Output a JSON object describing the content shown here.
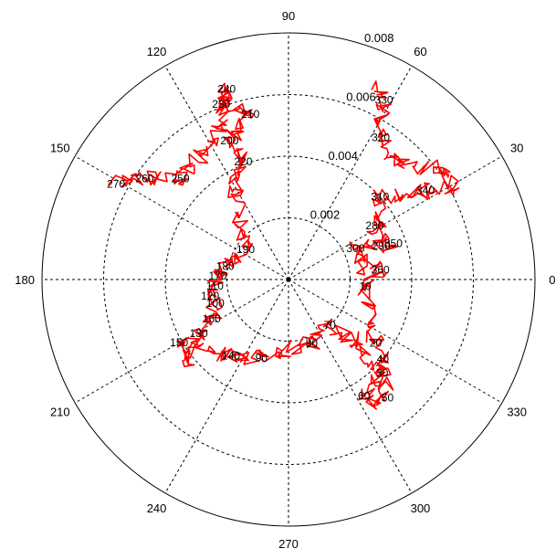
{
  "chart_data": {
    "type": "polar-line",
    "title": "",
    "angular_unit": "degrees",
    "angle_ticks": [
      "0",
      "30",
      "60",
      "90",
      "120",
      "150",
      "180",
      "210",
      "240",
      "270",
      "300",
      "330"
    ],
    "radial_ticks": [
      "0.002",
      "0.004",
      "0.006",
      "0.008"
    ],
    "rlim": [
      0,
      0.008
    ],
    "grid": true,
    "series_color": "#ff0000",
    "series": [
      {
        "name": "",
        "points": [
          {
            "theta": 65,
            "r": 0.007,
            "label": ""
          },
          {
            "theta": 62,
            "r": 0.0066,
            "label": "330"
          },
          {
            "theta": 57,
            "r": 0.0055,
            "label": "320"
          },
          {
            "theta": 45,
            "r": 0.0052,
            "label": ""
          },
          {
            "theta": 37,
            "r": 0.006,
            "label": ""
          },
          {
            "theta": 29,
            "r": 0.0062,
            "label": ""
          },
          {
            "theta": 33,
            "r": 0.0053,
            "label": "340"
          },
          {
            "theta": 42,
            "r": 0.004,
            "label": "310"
          },
          {
            "theta": 32,
            "r": 0.0033,
            "label": "280"
          },
          {
            "theta": 19,
            "r": 0.0036,
            "label": "350"
          },
          {
            "theta": 20,
            "r": 0.0032,
            "label": "290"
          },
          {
            "theta": 25,
            "r": 0.0024,
            "label": "300"
          },
          {
            "theta": 10,
            "r": 0.0024,
            "label": ""
          },
          {
            "theta": 6,
            "r": 0.003,
            "label": "360"
          },
          {
            "theta": 0,
            "r": 0.0027,
            "label": ""
          },
          {
            "theta": -5,
            "r": 0.0025,
            "label": "10"
          },
          {
            "theta": -25,
            "r": 0.003,
            "label": ""
          },
          {
            "theta": -36,
            "r": 0.0035,
            "label": "20"
          },
          {
            "theta": -40,
            "r": 0.004,
            "label": "40"
          },
          {
            "theta": -50,
            "r": 0.005,
            "label": "50"
          },
          {
            "theta": -56,
            "r": 0.0049,
            "label": ""
          },
          {
            "theta": -57,
            "r": 0.0045,
            "label": "60"
          },
          {
            "theta": -45,
            "r": 0.0043,
            "label": "30"
          },
          {
            "theta": -42,
            "r": 0.003,
            "label": ""
          },
          {
            "theta": -48,
            "r": 0.002,
            "label": "70"
          },
          {
            "theta": -70,
            "r": 0.0022,
            "label": "80"
          },
          {
            "theta": -95,
            "r": 0.0023,
            "label": ""
          },
          {
            "theta": -109,
            "r": 0.0027,
            "label": "90"
          },
          {
            "theta": -127,
            "r": 0.0031,
            "label": "140"
          },
          {
            "theta": -150,
            "r": 0.0041,
            "label": "150"
          },
          {
            "theta": -140,
            "r": 0.0042,
            "label": ""
          },
          {
            "theta": -149,
            "r": 0.0034,
            "label": "130"
          },
          {
            "theta": -153,
            "r": 0.0028,
            "label": "160"
          },
          {
            "theta": -162,
            "r": 0.0025,
            "label": "100"
          },
          {
            "theta": -168,
            "r": 0.0026,
            "label": "120"
          },
          {
            "theta": -175,
            "r": 0.0024,
            "label": "110"
          },
          {
            "theta": 177,
            "r": 0.0023,
            "label": "170"
          },
          {
            "theta": 168,
            "r": 0.0021,
            "label": "180"
          },
          {
            "theta": 145,
            "r": 0.0017,
            "label": "190"
          },
          {
            "theta": 120,
            "r": 0.0035,
            "label": ""
          },
          {
            "theta": 111,
            "r": 0.0041,
            "label": "220"
          },
          {
            "theta": 113,
            "r": 0.0049,
            "label": "200"
          },
          {
            "theta": 103,
            "r": 0.0055,
            "label": "210"
          },
          {
            "theta": 111,
            "r": 0.0061,
            "label": "230"
          },
          {
            "theta": 108,
            "r": 0.0065,
            "label": "240"
          },
          {
            "theta": 117,
            "r": 0.0051,
            "label": ""
          },
          {
            "theta": 137,
            "r": 0.0048,
            "label": "250"
          },
          {
            "theta": 145,
            "r": 0.0057,
            "label": "260"
          },
          {
            "theta": 151,
            "r": 0.0064,
            "label": "270"
          }
        ]
      }
    ]
  }
}
